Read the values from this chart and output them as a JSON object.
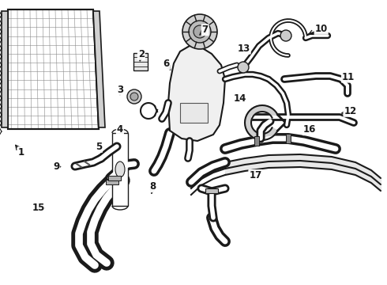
{
  "bg_color": "#ffffff",
  "line_color": "#1a1a1a",
  "fig_width": 4.9,
  "fig_height": 3.6,
  "dpi": 100,
  "label_configs": {
    "1": {
      "lpos": [
        0.055,
        0.465
      ],
      "aend": [
        0.035,
        0.5
      ]
    },
    "2": {
      "lpos": [
        0.365,
        0.81
      ],
      "aend": [
        0.36,
        0.775
      ]
    },
    "3": {
      "lpos": [
        0.31,
        0.685
      ],
      "aend": [
        0.31,
        0.655
      ]
    },
    "4": {
      "lpos": [
        0.31,
        0.545
      ],
      "aend": [
        0.32,
        0.57
      ]
    },
    "5": {
      "lpos": [
        0.255,
        0.485
      ],
      "aend": [
        0.27,
        0.48
      ]
    },
    "6": {
      "lpos": [
        0.43,
        0.775
      ],
      "aend": [
        0.445,
        0.745
      ]
    },
    "7": {
      "lpos": [
        0.53,
        0.895
      ],
      "aend": [
        0.51,
        0.87
      ]
    },
    "8": {
      "lpos": [
        0.395,
        0.345
      ],
      "aend": [
        0.39,
        0.31
      ]
    },
    "9": {
      "lpos": [
        0.145,
        0.415
      ],
      "aend": [
        0.165,
        0.415
      ]
    },
    "10": {
      "lpos": [
        0.83,
        0.9
      ],
      "aend": [
        0.79,
        0.875
      ]
    },
    "11": {
      "lpos": [
        0.9,
        0.73
      ],
      "aend": [
        0.875,
        0.715
      ]
    },
    "12": {
      "lpos": [
        0.905,
        0.61
      ],
      "aend": [
        0.875,
        0.6
      ]
    },
    "13": {
      "lpos": [
        0.63,
        0.83
      ],
      "aend": [
        0.61,
        0.81
      ]
    },
    "14": {
      "lpos": [
        0.62,
        0.655
      ],
      "aend": [
        0.615,
        0.63
      ]
    },
    "15": {
      "lpos": [
        0.1,
        0.27
      ],
      "aend": [
        0.125,
        0.27
      ]
    },
    "16": {
      "lpos": [
        0.8,
        0.545
      ],
      "aend": [
        0.785,
        0.565
      ]
    },
    "17": {
      "lpos": [
        0.66,
        0.385
      ],
      "aend": [
        0.65,
        0.415
      ]
    }
  }
}
